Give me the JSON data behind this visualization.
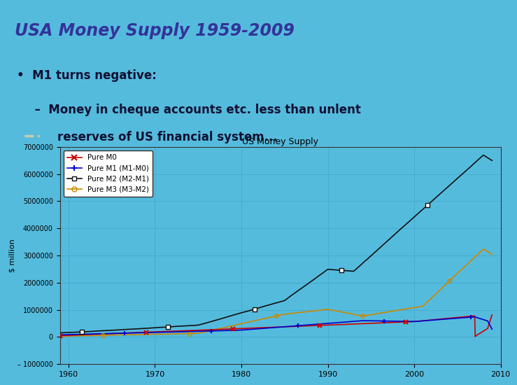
{
  "title": "USA Money Supply 1959-2009",
  "title_bg": "#ffff99",
  "slide_bg": "#55bbdd",
  "chart_title": "US Money Supply",
  "ylabel": "$ million",
  "xlim": [
    1959,
    2010
  ],
  "ylim": [
    -1000000,
    7000000
  ],
  "yticks": [
    -1000000,
    0,
    1000000,
    2000000,
    3000000,
    4000000,
    5000000,
    6000000,
    7000000
  ],
  "xticks": [
    1960,
    1970,
    1980,
    1990,
    2000,
    2010
  ],
  "bullet1": "•  M1 turns negative:",
  "bullet2": "  –  Money in cheque accounts etc. less than unlent",
  "bullet3": "    reserves of US financial system...",
  "legend_labels": [
    "Pure M0",
    "Pure M1 (M1-M0)",
    "Pure M2 (M2-M1)",
    "Pure M3 (M3-M2)"
  ],
  "colors": [
    "#cc0000",
    "#0000cc",
    "#111111",
    "#cc8800"
  ],
  "chart_bg": "#55bbdd",
  "grid_color": "#44aacc"
}
